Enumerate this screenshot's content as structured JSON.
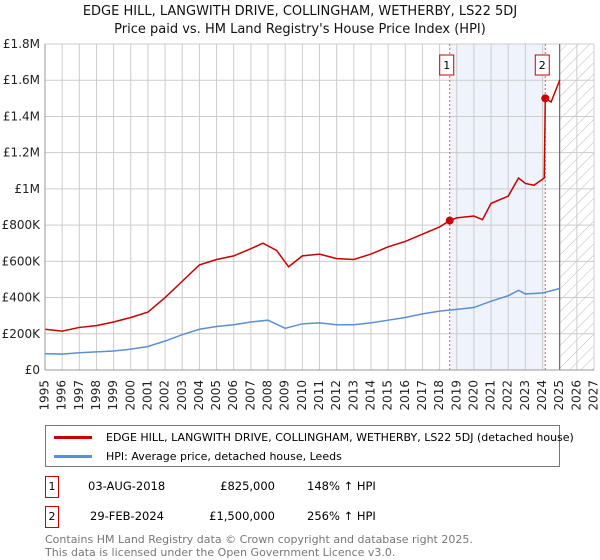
{
  "chart_data": {
    "type": "line",
    "title": "EDGE HILL, LANGWITH DRIVE, COLLINGHAM, WETHERBY, LS22 5DJ",
    "subtitle": "Price paid vs. HM Land Registry's House Price Index (HPI)",
    "xlim": [
      1995,
      2027
    ],
    "ylim": [
      0,
      1800000
    ],
    "x_ticks": [
      "1995",
      "1996",
      "1997",
      "1998",
      "1999",
      "2000",
      "2001",
      "2002",
      "2003",
      "2004",
      "2005",
      "2006",
      "2007",
      "2008",
      "2009",
      "2010",
      "2011",
      "2012",
      "2013",
      "2014",
      "2015",
      "2016",
      "2017",
      "2018",
      "2019",
      "2020",
      "2021",
      "2022",
      "2023",
      "2024",
      "2025",
      "2026",
      "2027"
    ],
    "y_ticks": [
      {
        "v": 0,
        "label": "£0"
      },
      {
        "v": 200000,
        "label": "£200K"
      },
      {
        "v": 400000,
        "label": "£400K"
      },
      {
        "v": 600000,
        "label": "£600K"
      },
      {
        "v": 800000,
        "label": "£800K"
      },
      {
        "v": 1000000,
        "label": "£1M"
      },
      {
        "v": 1200000,
        "label": "£1.2M"
      },
      {
        "v": 1400000,
        "label": "£1.4M"
      },
      {
        "v": 1600000,
        "label": "£1.6M"
      },
      {
        "v": 1800000,
        "label": "£1.8M"
      }
    ],
    "grid": true,
    "shaded_range": [
      2018.59,
      2024.16
    ],
    "forecast_start": 2025.0,
    "series": [
      {
        "name": "EDGE HILL, LANGWITH DRIVE, COLLINGHAM, WETHERBY, LS22 5DJ (detached house)",
        "color": "#cc0000",
        "x": [
          1995,
          1996,
          1997,
          1998,
          1999,
          2000,
          2001,
          2002,
          2003,
          2004,
          2005,
          2006,
          2007,
          2007.7,
          2008.5,
          2009.2,
          2010,
          2011,
          2012,
          2013,
          2014,
          2015,
          2016,
          2017,
          2018,
          2018.59,
          2019,
          2020,
          2020.5,
          2021,
          2022,
          2022.6,
          2023,
          2023.5,
          2024.1,
          2024.16,
          2024.5,
          2025
        ],
        "y": [
          225000,
          215000,
          235000,
          245000,
          265000,
          290000,
          320000,
          400000,
          490000,
          580000,
          610000,
          630000,
          670000,
          700000,
          660000,
          570000,
          630000,
          640000,
          615000,
          610000,
          640000,
          680000,
          710000,
          750000,
          790000,
          825000,
          840000,
          850000,
          830000,
          920000,
          960000,
          1060000,
          1030000,
          1020000,
          1060000,
          1500000,
          1480000,
          1600000
        ]
      },
      {
        "name": "HPI: Average price, detached house, Leeds",
        "color": "#5b8fd6",
        "x": [
          1995,
          1996,
          1997,
          1998,
          1999,
          2000,
          2001,
          2002,
          2003,
          2004,
          2005,
          2006,
          2007,
          2008,
          2009,
          2010,
          2011,
          2012,
          2013,
          2014,
          2015,
          2016,
          2017,
          2018,
          2019,
          2020,
          2021,
          2022,
          2022.6,
          2023,
          2024,
          2025
        ],
        "y": [
          90000,
          88000,
          95000,
          100000,
          105000,
          115000,
          130000,
          160000,
          195000,
          225000,
          240000,
          250000,
          265000,
          275000,
          230000,
          255000,
          260000,
          250000,
          250000,
          260000,
          275000,
          290000,
          310000,
          325000,
          335000,
          345000,
          380000,
          410000,
          440000,
          420000,
          425000,
          450000
        ]
      }
    ],
    "markers": [
      {
        "label": "1",
        "x": 2018.59,
        "y": 825000
      },
      {
        "label": "2",
        "x": 2024.16,
        "y": 1500000
      }
    ]
  },
  "transactions": [
    {
      "num": "1",
      "date": "03-AUG-2018",
      "price": "£825,000",
      "hpi": "148% ↑ HPI"
    },
    {
      "num": "2",
      "date": "29-FEB-2024",
      "price": "£1,500,000",
      "hpi": "256% ↑ HPI"
    }
  ],
  "footer": [
    "Contains HM Land Registry data © Crown copyright and database right 2025.",
    "This data is licensed under the Open Government Licence v3.0."
  ]
}
